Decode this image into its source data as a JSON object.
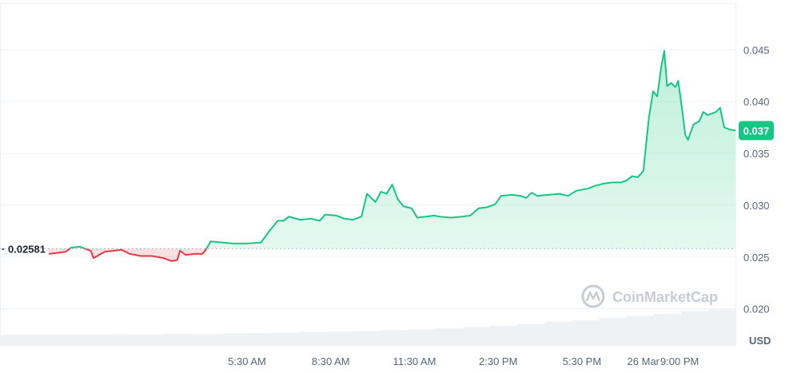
{
  "chart_data": {
    "type": "line",
    "currency": "USD",
    "reference_price": 0.02581,
    "reference_label": "0.02581",
    "current_price_label": "0.037",
    "watermark": "CoinMarketCap",
    "ylim": [
      0.0165,
      0.0495
    ],
    "y_ticks": [
      {
        "value": 0.02,
        "label": "0.020"
      },
      {
        "value": 0.025,
        "label": "0.025"
      },
      {
        "value": 0.03,
        "label": "0.030"
      },
      {
        "value": 0.035,
        "label": "0.035"
      },
      {
        "value": 0.04,
        "label": "0.040"
      },
      {
        "value": 0.045,
        "label": "0.045"
      }
    ],
    "x_ticks": [
      {
        "t": 19.7,
        "label": "26 Mar"
      },
      {
        "t": 5.5,
        "label": "5:30 AM"
      },
      {
        "t": 8.5,
        "label": "8:30 AM"
      },
      {
        "t": 11.5,
        "label": "11:30 AM"
      },
      {
        "t": 14.5,
        "label": "2:30 PM"
      },
      {
        "t": 17.5,
        "label": "5:30 PM"
      },
      {
        "t": 21.0,
        "label": "9:00 PM"
      }
    ],
    "xlim_hours": [
      -3.35,
      23.0
    ],
    "series": [
      {
        "points": [
          [
            -1.6,
            0.0253
          ],
          [
            -1.3,
            0.0254
          ],
          [
            -1.0,
            0.0255
          ],
          [
            -0.8,
            0.0259
          ],
          [
            -0.5,
            0.026
          ],
          [
            -0.3,
            0.0258
          ],
          [
            -0.1,
            0.0256
          ],
          [
            0.0,
            0.0249
          ],
          [
            0.2,
            0.0252
          ],
          [
            0.4,
            0.0255
          ],
          [
            0.7,
            0.0256
          ],
          [
            1.0,
            0.0257
          ],
          [
            1.3,
            0.0253
          ],
          [
            1.7,
            0.0251
          ],
          [
            2.1,
            0.0251
          ],
          [
            2.5,
            0.0249
          ],
          [
            2.8,
            0.0246
          ],
          [
            3.0,
            0.0247
          ],
          [
            3.1,
            0.0256
          ],
          [
            3.3,
            0.0252
          ],
          [
            3.6,
            0.0253
          ],
          [
            3.9,
            0.0253
          ],
          [
            4.0,
            0.0256
          ],
          [
            4.2,
            0.0265
          ],
          [
            4.6,
            0.0264
          ],
          [
            5.0,
            0.0263
          ],
          [
            5.5,
            0.0263
          ],
          [
            6.0,
            0.0264
          ],
          [
            6.3,
            0.0275
          ],
          [
            6.6,
            0.0285
          ],
          [
            6.8,
            0.0285
          ],
          [
            7.0,
            0.0289
          ],
          [
            7.4,
            0.0286
          ],
          [
            7.8,
            0.0287
          ],
          [
            8.1,
            0.0285
          ],
          [
            8.3,
            0.0291
          ],
          [
            8.7,
            0.029
          ],
          [
            9.0,
            0.0287
          ],
          [
            9.3,
            0.0286
          ],
          [
            9.6,
            0.0289
          ],
          [
            9.8,
            0.0311
          ],
          [
            10.1,
            0.0303
          ],
          [
            10.3,
            0.0313
          ],
          [
            10.5,
            0.0311
          ],
          [
            10.7,
            0.032
          ],
          [
            10.9,
            0.0306
          ],
          [
            11.1,
            0.0299
          ],
          [
            11.4,
            0.0297
          ],
          [
            11.6,
            0.0288
          ],
          [
            11.9,
            0.0289
          ],
          [
            12.2,
            0.029
          ],
          [
            12.4,
            0.0289
          ],
          [
            12.8,
            0.0288
          ],
          [
            13.2,
            0.0289
          ],
          [
            13.5,
            0.029
          ],
          [
            13.8,
            0.0297
          ],
          [
            14.1,
            0.0298
          ],
          [
            14.4,
            0.0301
          ],
          [
            14.6,
            0.0309
          ],
          [
            15.0,
            0.031
          ],
          [
            15.3,
            0.0309
          ],
          [
            15.5,
            0.0307
          ],
          [
            15.7,
            0.0312
          ],
          [
            15.9,
            0.0309
          ],
          [
            16.3,
            0.031
          ],
          [
            16.7,
            0.0311
          ],
          [
            17.0,
            0.0309
          ],
          [
            17.3,
            0.0314
          ],
          [
            17.7,
            0.0316
          ],
          [
            18.0,
            0.0319
          ],
          [
            18.3,
            0.0321
          ],
          [
            18.6,
            0.0322
          ],
          [
            18.9,
            0.0322
          ],
          [
            19.1,
            0.0324
          ],
          [
            19.3,
            0.0328
          ],
          [
            19.5,
            0.0327
          ],
          [
            19.7,
            0.0333
          ],
          [
            19.9,
            0.0385
          ],
          [
            20.05,
            0.041
          ],
          [
            20.2,
            0.0405
          ],
          [
            20.35,
            0.0435
          ],
          [
            20.45,
            0.0449
          ],
          [
            20.55,
            0.0415
          ],
          [
            20.7,
            0.0418
          ],
          [
            20.85,
            0.0414
          ],
          [
            20.95,
            0.042
          ],
          [
            21.1,
            0.039
          ],
          [
            21.2,
            0.0368
          ],
          [
            21.3,
            0.0363
          ],
          [
            21.5,
            0.0378
          ],
          [
            21.7,
            0.0381
          ],
          [
            21.85,
            0.039
          ],
          [
            22.0,
            0.0387
          ],
          [
            22.3,
            0.039
          ],
          [
            22.45,
            0.0394
          ],
          [
            22.6,
            0.0375
          ],
          [
            22.8,
            0.0373
          ],
          [
            23.0,
            0.0372
          ]
        ]
      }
    ],
    "volume_levels": [
      0.18,
      0.19,
      0.18,
      0.19,
      0.2,
      0.19,
      0.21,
      0.2,
      0.22,
      0.23,
      0.25,
      0.27,
      0.28,
      0.3,
      0.32,
      0.35,
      0.38,
      0.42,
      0.46,
      0.52,
      0.58,
      0.63,
      0.7,
      0.76,
      0.82,
      0.9,
      0.98
    ]
  }
}
